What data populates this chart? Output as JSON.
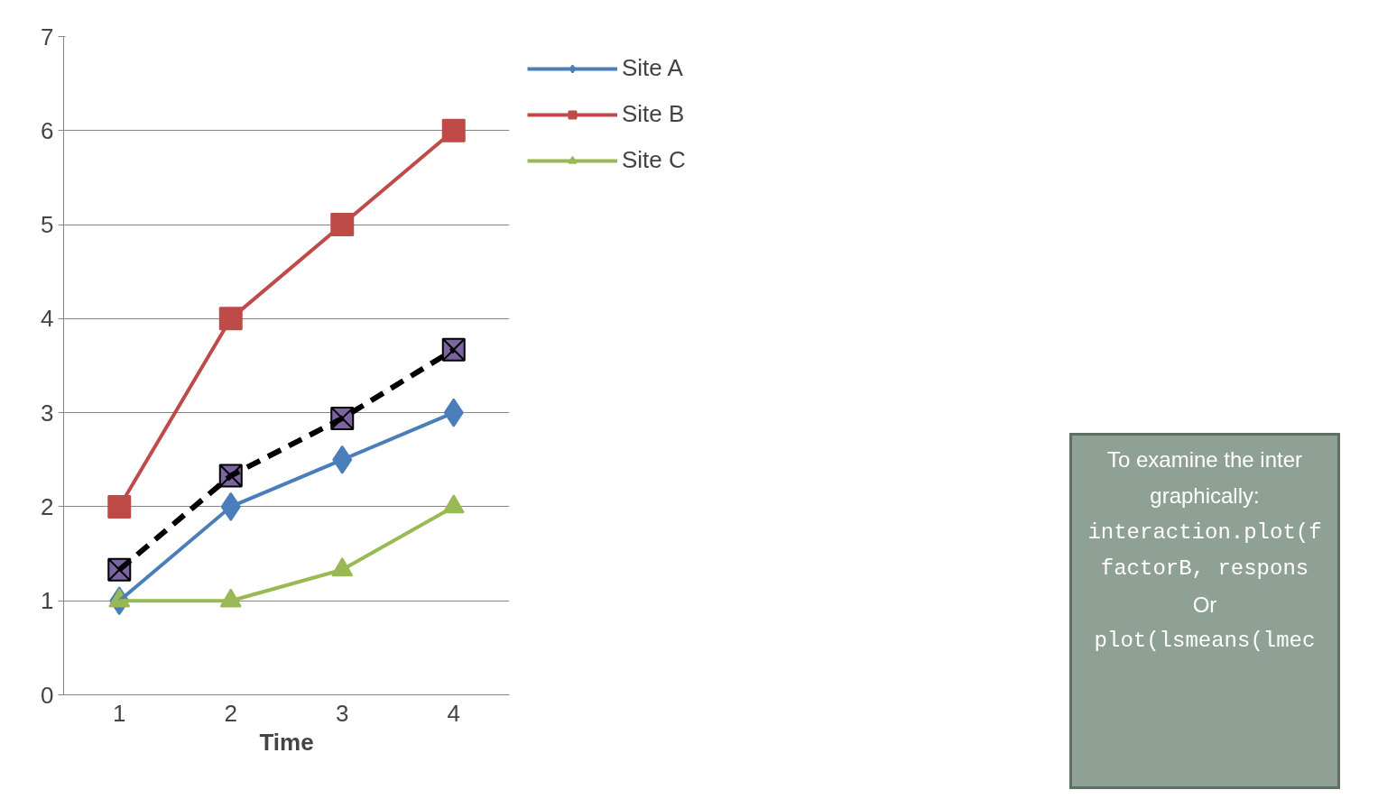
{
  "chart_data": {
    "type": "line",
    "xlabel": "Time",
    "categories": [
      "1",
      "2",
      "3",
      "4"
    ],
    "series": [
      {
        "name": "Site A",
        "color": "#4a7ebb",
        "values": [
          1,
          2,
          2.5,
          3
        ],
        "marker": "diamond"
      },
      {
        "name": "Site B",
        "color": "#be4b48",
        "values": [
          2,
          4,
          5,
          6
        ],
        "marker": "square"
      },
      {
        "name": "Site C",
        "color": "#98b954",
        "values": [
          1,
          1,
          1.33,
          2
        ],
        "marker": "triangle"
      },
      {
        "color": "#000000",
        "values": [
          1.33,
          2.33,
          2.94,
          3.67
        ],
        "marker": "square",
        "line_style": "dashed"
      }
    ],
    "ylim": [
      0,
      7
    ],
    "yticks": [
      0,
      1,
      2,
      3,
      4,
      5,
      6,
      7
    ],
    "grid": "y",
    "legend": "right",
    "annotations": [
      "To examine the inter",
      "graphically:",
      "interaction.plot(f",
      "factorB, respons",
      "Or",
      "plot(lsmeans(lmec"
    ]
  }
}
